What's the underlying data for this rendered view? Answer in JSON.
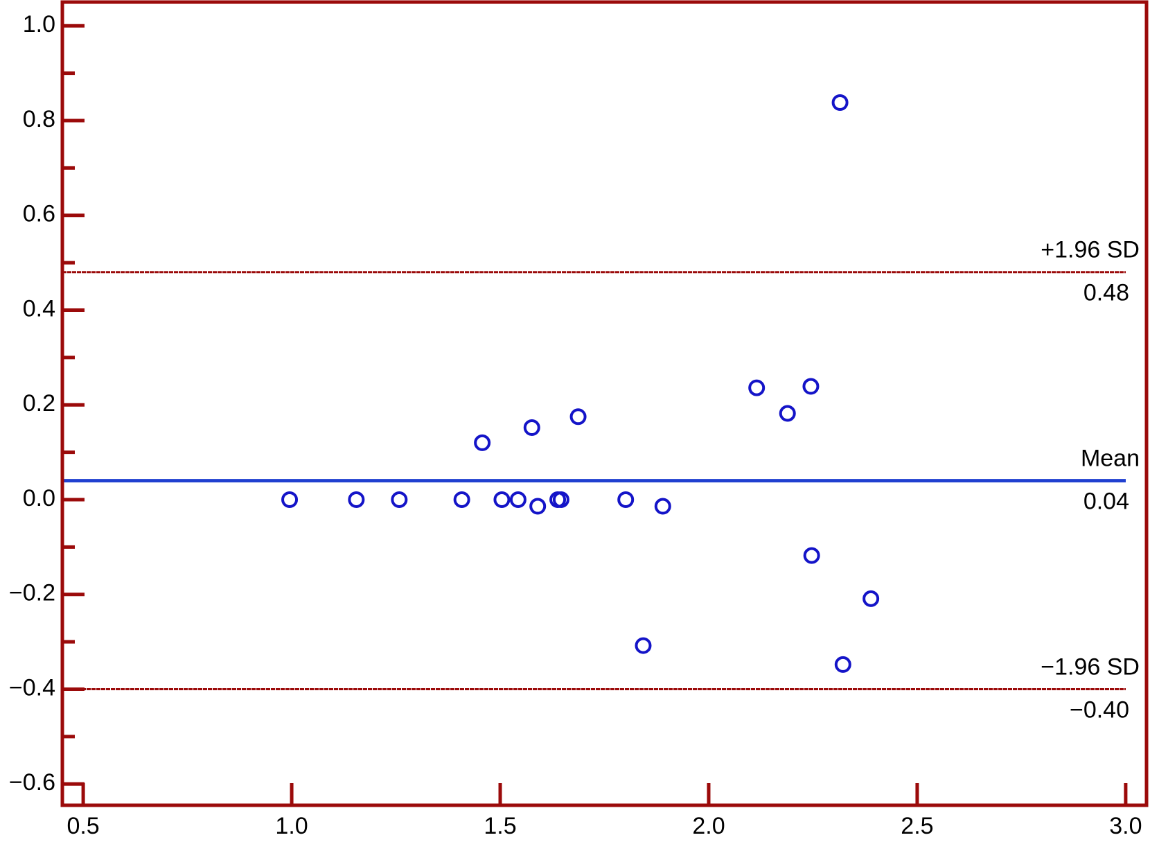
{
  "chart_data": {
    "type": "scatter",
    "x": [
      0.995,
      1.155,
      1.258,
      1.408,
      1.457,
      1.504,
      1.543,
      1.576,
      1.59,
      1.638,
      1.646,
      1.687,
      1.801,
      1.843,
      1.89,
      2.115,
      2.189,
      2.245,
      2.247,
      2.315,
      2.322,
      2.389
    ],
    "series": [
      {
        "color": "#1414c8",
        "values": [
          0,
          0,
          0,
          0,
          0.12,
          0,
          0,
          0.152,
          -0.014,
          0,
          0,
          0.175,
          0,
          -0.308,
          -0.014,
          0.236,
          0.182,
          0.239,
          -0.118,
          0.838,
          -0.348,
          -0.209
        ]
      }
    ],
    "xlim": [
      0.45,
      3.05
    ],
    "ylim": [
      -0.645,
      1.05
    ],
    "xticks": [
      0.5,
      {
        "value": 1,
        "label": "1.0"
      },
      1.5,
      {
        "value": 2,
        "label": "2.0"
      },
      2.5,
      {
        "value": 3,
        "label": "3.0"
      }
    ],
    "yticks": [
      {
        "value": -0.6,
        "label": "−0.6"
      },
      {
        "value": -0.4,
        "label": "−0.4"
      },
      {
        "value": -0.2,
        "label": "−0.2"
      },
      {
        "value": 0,
        "label": "0.0"
      },
      0.2,
      0.4,
      0.6,
      0.8,
      {
        "value": 1,
        "label": "1.0"
      }
    ],
    "yminorticks": [
      -0.5,
      -0.3,
      -0.1,
      0.1,
      0.3,
      0.5,
      0.7,
      0.9
    ],
    "axis_color": "#9b0a0a",
    "reference_lines": [
      {
        "label": "+1.96 SD",
        "value": 0.48,
        "color": "#9b0a0a",
        "dashed": true
      },
      {
        "label": "Mean",
        "value": 0.04,
        "color": "#2040d0",
        "dashed": false
      },
      {
        "label": "−1.96 SD",
        "value": -0.4,
        "value_label": "−0.40",
        "color": "#9b0a0a",
        "dashed": true
      }
    ]
  }
}
